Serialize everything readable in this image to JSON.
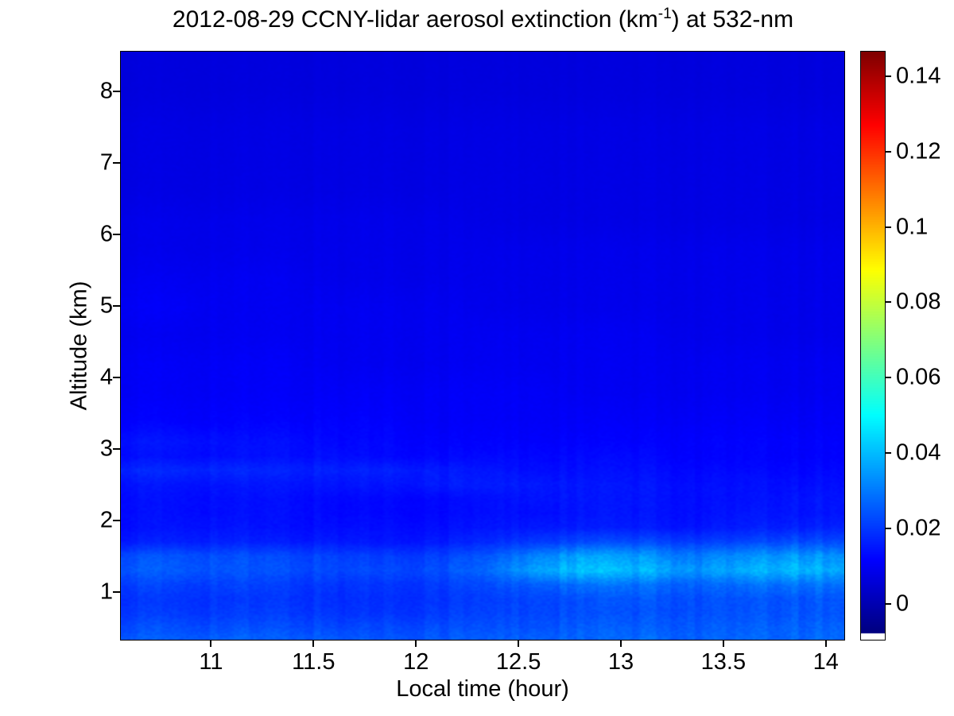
{
  "title": {
    "full": "2012-08-29 CCNY-lidar aerosol extinction (km-1) at 532-nm",
    "pre": "2012-08-29 CCNY-lidar aerosol extinction (km",
    "sup": "-1",
    "post": ") at 532-nm"
  },
  "colors": {
    "background": "#ffffff",
    "text": "#000000",
    "axis": "#000000",
    "colormap": "jet"
  },
  "chart_data": {
    "type": "heatmap",
    "title": "2012-08-29 CCNY-lidar aerosol extinction (km-1) at 532-nm",
    "xlabel": "Local time (hour)",
    "ylabel": "Altitude (km)",
    "xlim": [
      10.56,
      14.09
    ],
    "ylim": [
      0.33,
      8.56
    ],
    "x_ticks": [
      11,
      11.5,
      12,
      12.5,
      13,
      13.5,
      14
    ],
    "x_tick_labels": [
      "11",
      "11.5",
      "12",
      "12.5",
      "13",
      "13.5",
      "14"
    ],
    "y_ticks": [
      1,
      2,
      3,
      4,
      5,
      6,
      7,
      8
    ],
    "y_tick_labels": [
      "1",
      "2",
      "3",
      "4",
      "5",
      "6",
      "7",
      "8"
    ],
    "grid": false,
    "colorbar": {
      "side": "right",
      "clim": [
        -0.0095,
        0.1465
      ],
      "ticks": [
        0,
        0.02,
        0.04,
        0.06,
        0.08,
        0.1,
        0.12,
        0.14
      ],
      "tick_labels": [
        "0",
        "0.02",
        "0.04",
        "0.06",
        "0.08",
        "0.1",
        "0.12",
        "0.14"
      ],
      "units": "km^-1",
      "colormap": "jet"
    },
    "x": [
      10.6,
      10.85,
      11.1,
      11.35,
      11.6,
      11.85,
      12.1,
      12.35,
      12.6,
      12.85,
      13.1,
      13.35,
      13.6,
      13.85,
      14.05
    ],
    "y": [
      0.35,
      0.5,
      0.7,
      0.9,
      1.1,
      1.3,
      1.5,
      1.7,
      1.9,
      2.1,
      2.3,
      2.5,
      2.7,
      2.9,
      3.1,
      3.4,
      3.8,
      4.2,
      4.6,
      5.0,
      5.4,
      5.8,
      6.2,
      6.6,
      7.0,
      7.5,
      8.0,
      8.5
    ],
    "values": [
      [
        0.024,
        0.024,
        0.025,
        0.024,
        0.024,
        0.023,
        0.024,
        0.024,
        0.025,
        0.025,
        0.026,
        0.025,
        0.025,
        0.026,
        0.026
      ],
      [
        0.022,
        0.022,
        0.022,
        0.022,
        0.021,
        0.021,
        0.022,
        0.022,
        0.023,
        0.024,
        0.024,
        0.024,
        0.024,
        0.025,
        0.025
      ],
      [
        0.019,
        0.019,
        0.019,
        0.019,
        0.018,
        0.018,
        0.019,
        0.02,
        0.021,
        0.022,
        0.022,
        0.022,
        0.022,
        0.023,
        0.023
      ],
      [
        0.018,
        0.018,
        0.018,
        0.018,
        0.017,
        0.017,
        0.018,
        0.019,
        0.021,
        0.022,
        0.023,
        0.022,
        0.022,
        0.023,
        0.023
      ],
      [
        0.02,
        0.02,
        0.02,
        0.019,
        0.018,
        0.018,
        0.019,
        0.021,
        0.025,
        0.027,
        0.027,
        0.025,
        0.026,
        0.028,
        0.027
      ],
      [
        0.024,
        0.024,
        0.023,
        0.022,
        0.021,
        0.021,
        0.022,
        0.026,
        0.036,
        0.04,
        0.038,
        0.033,
        0.036,
        0.039,
        0.036
      ],
      [
        0.022,
        0.023,
        0.022,
        0.021,
        0.02,
        0.019,
        0.02,
        0.023,
        0.031,
        0.035,
        0.033,
        0.029,
        0.031,
        0.034,
        0.032
      ],
      [
        0.014,
        0.015,
        0.015,
        0.014,
        0.014,
        0.013,
        0.014,
        0.016,
        0.019,
        0.021,
        0.021,
        0.019,
        0.02,
        0.022,
        0.021
      ],
      [
        0.012,
        0.013,
        0.013,
        0.012,
        0.012,
        0.012,
        0.012,
        0.013,
        0.014,
        0.014,
        0.014,
        0.013,
        0.014,
        0.015,
        0.015
      ],
      [
        0.012,
        0.012,
        0.012,
        0.012,
        0.011,
        0.011,
        0.011,
        0.012,
        0.012,
        0.013,
        0.013,
        0.012,
        0.013,
        0.013,
        0.013
      ],
      [
        0.012,
        0.012,
        0.012,
        0.012,
        0.011,
        0.011,
        0.011,
        0.012,
        0.013,
        0.013,
        0.013,
        0.012,
        0.012,
        0.013,
        0.013
      ],
      [
        0.013,
        0.013,
        0.013,
        0.013,
        0.013,
        0.013,
        0.014,
        0.014,
        0.014,
        0.013,
        0.013,
        0.012,
        0.012,
        0.012,
        0.012
      ],
      [
        0.016,
        0.016,
        0.016,
        0.015,
        0.015,
        0.015,
        0.014,
        0.013,
        0.012,
        0.012,
        0.012,
        0.011,
        0.011,
        0.011,
        0.011
      ],
      [
        0.012,
        0.012,
        0.012,
        0.012,
        0.012,
        0.011,
        0.011,
        0.011,
        0.011,
        0.011,
        0.011,
        0.01,
        0.01,
        0.01,
        0.01
      ],
      [
        0.013,
        0.013,
        0.012,
        0.012,
        0.011,
        0.011,
        0.01,
        0.01,
        0.01,
        0.01,
        0.01,
        0.01,
        0.01,
        0.01,
        0.01
      ],
      [
        0.01,
        0.01,
        0.01,
        0.01,
        0.01,
        0.01,
        0.009,
        0.009,
        0.009,
        0.009,
        0.009,
        0.009,
        0.009,
        0.009,
        0.009
      ],
      [
        0.009,
        0.009,
        0.009,
        0.009,
        0.009,
        0.009,
        0.009,
        0.009,
        0.009,
        0.008,
        0.008,
        0.008,
        0.008,
        0.008,
        0.008
      ],
      [
        0.009,
        0.009,
        0.009,
        0.009,
        0.008,
        0.008,
        0.008,
        0.008,
        0.008,
        0.008,
        0.008,
        0.008,
        0.008,
        0.008,
        0.008
      ],
      [
        0.008,
        0.008,
        0.008,
        0.008,
        0.008,
        0.008,
        0.008,
        0.008,
        0.008,
        0.008,
        0.008,
        0.007,
        0.007,
        0.007,
        0.007
      ],
      [
        0.009,
        0.009,
        0.008,
        0.008,
        0.008,
        0.008,
        0.008,
        0.007,
        0.007,
        0.007,
        0.007,
        0.007,
        0.007,
        0.007,
        0.007
      ],
      [
        0.008,
        0.008,
        0.008,
        0.008,
        0.007,
        0.007,
        0.007,
        0.007,
        0.007,
        0.007,
        0.007,
        0.007,
        0.007,
        0.007,
        0.007
      ],
      [
        0.007,
        0.007,
        0.007,
        0.007,
        0.007,
        0.007,
        0.007,
        0.007,
        0.007,
        0.007,
        0.007,
        0.007,
        0.007,
        0.007,
        0.007
      ],
      [
        0.007,
        0.007,
        0.007,
        0.007,
        0.007,
        0.007,
        0.007,
        0.006,
        0.006,
        0.006,
        0.006,
        0.006,
        0.006,
        0.006,
        0.006
      ],
      [
        0.006,
        0.006,
        0.006,
        0.006,
        0.006,
        0.006,
        0.006,
        0.006,
        0.006,
        0.006,
        0.006,
        0.006,
        0.006,
        0.006,
        0.006
      ],
      [
        0.006,
        0.006,
        0.006,
        0.006,
        0.006,
        0.006,
        0.006,
        0.006,
        0.006,
        0.006,
        0.006,
        0.006,
        0.006,
        0.006,
        0.006
      ],
      [
        0.006,
        0.006,
        0.006,
        0.006,
        0.006,
        0.006,
        0.006,
        0.006,
        0.006,
        0.006,
        0.006,
        0.006,
        0.006,
        0.006,
        0.006
      ],
      [
        0.005,
        0.005,
        0.005,
        0.005,
        0.005,
        0.005,
        0.005,
        0.005,
        0.005,
        0.005,
        0.005,
        0.005,
        0.005,
        0.005,
        0.005
      ],
      [
        0.005,
        0.005,
        0.005,
        0.005,
        0.005,
        0.005,
        0.005,
        0.005,
        0.005,
        0.005,
        0.005,
        0.005,
        0.005,
        0.005,
        0.005
      ]
    ]
  }
}
